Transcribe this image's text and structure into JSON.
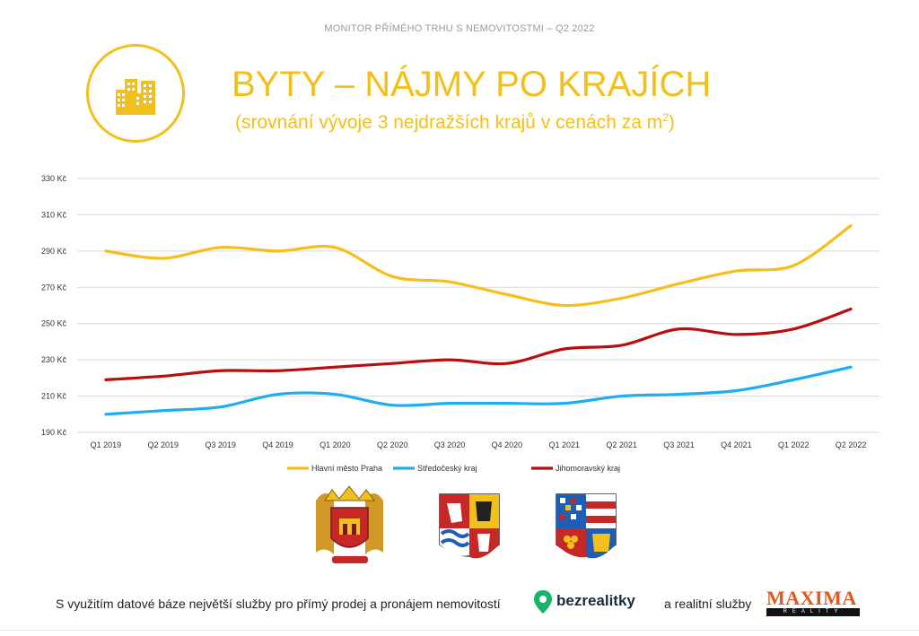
{
  "header": {
    "top_caption": "MONITOR PŘÍMÉHO TRHU S NEMOVITOSTMI – Q2 2022",
    "title": "BYTY – NÁJMY PO KRAJÍCH",
    "subtitle_main": "(srovnání vývoje 3 nejdražších krajů v cenách za m",
    "subtitle_sup": "2",
    "subtitle_end": ")",
    "icon": "buildings-icon"
  },
  "colors": {
    "accent": "#f2c01a",
    "praha": "#f7bd1b",
    "stredocesky": "#1eaef0",
    "jihomoravsky": "#b90e0e",
    "grid": "#d9d9d9"
  },
  "chart_data": {
    "type": "line",
    "categories": [
      "Q1 2019",
      "Q2 2019",
      "Q3 2019",
      "Q4 2019",
      "Q1 2020",
      "Q2 2020",
      "Q3 2020",
      "Q4 2020",
      "Q1 2021",
      "Q2 2021",
      "Q3 2021",
      "Q4 2021",
      "Q1 2022",
      "Q2 2022"
    ],
    "y_ticks": [
      "190 Kč",
      "210 Kč",
      "230 Kč",
      "250 Kč",
      "270 Kč",
      "290 Kč",
      "310 Kč",
      "330 Kč"
    ],
    "ylim": [
      190,
      330
    ],
    "grid": true,
    "legend_position": "bottom",
    "series": [
      {
        "name": "Hlavní město Praha",
        "color_key": "praha",
        "values": [
          290,
          286,
          292,
          290,
          292,
          276,
          273,
          266,
          260,
          264,
          272,
          279,
          282,
          304
        ]
      },
      {
        "name": "Středočeský kraj",
        "color_key": "stredocesky",
        "values": [
          200,
          202,
          204,
          211,
          211,
          205,
          206,
          206,
          206,
          210,
          211,
          213,
          219,
          226
        ]
      },
      {
        "name": "Jihomoravský kraj",
        "color_key": "jihomoravsky",
        "values": [
          219,
          221,
          224,
          224,
          226,
          228,
          230,
          228,
          236,
          238,
          247,
          244,
          247,
          258
        ]
      }
    ]
  },
  "emblems": [
    {
      "icon": "praha-coat-of-arms-icon"
    },
    {
      "icon": "stredocesky-kraj-coat-of-arms-icon"
    },
    {
      "icon": "jihomoravsky-kraj-coat-of-arms-icon"
    }
  ],
  "footer": {
    "text_left": "S využitím datové báze největší služby pro přímý prodej a pronájem nemovitostí",
    "brand_name": "bezrealitky",
    "brand_icon": "bezrealitky-pin-icon",
    "text_right": "a realitní služby",
    "maxima_name": "MAXIMA",
    "maxima_sub": "REALITY"
  }
}
